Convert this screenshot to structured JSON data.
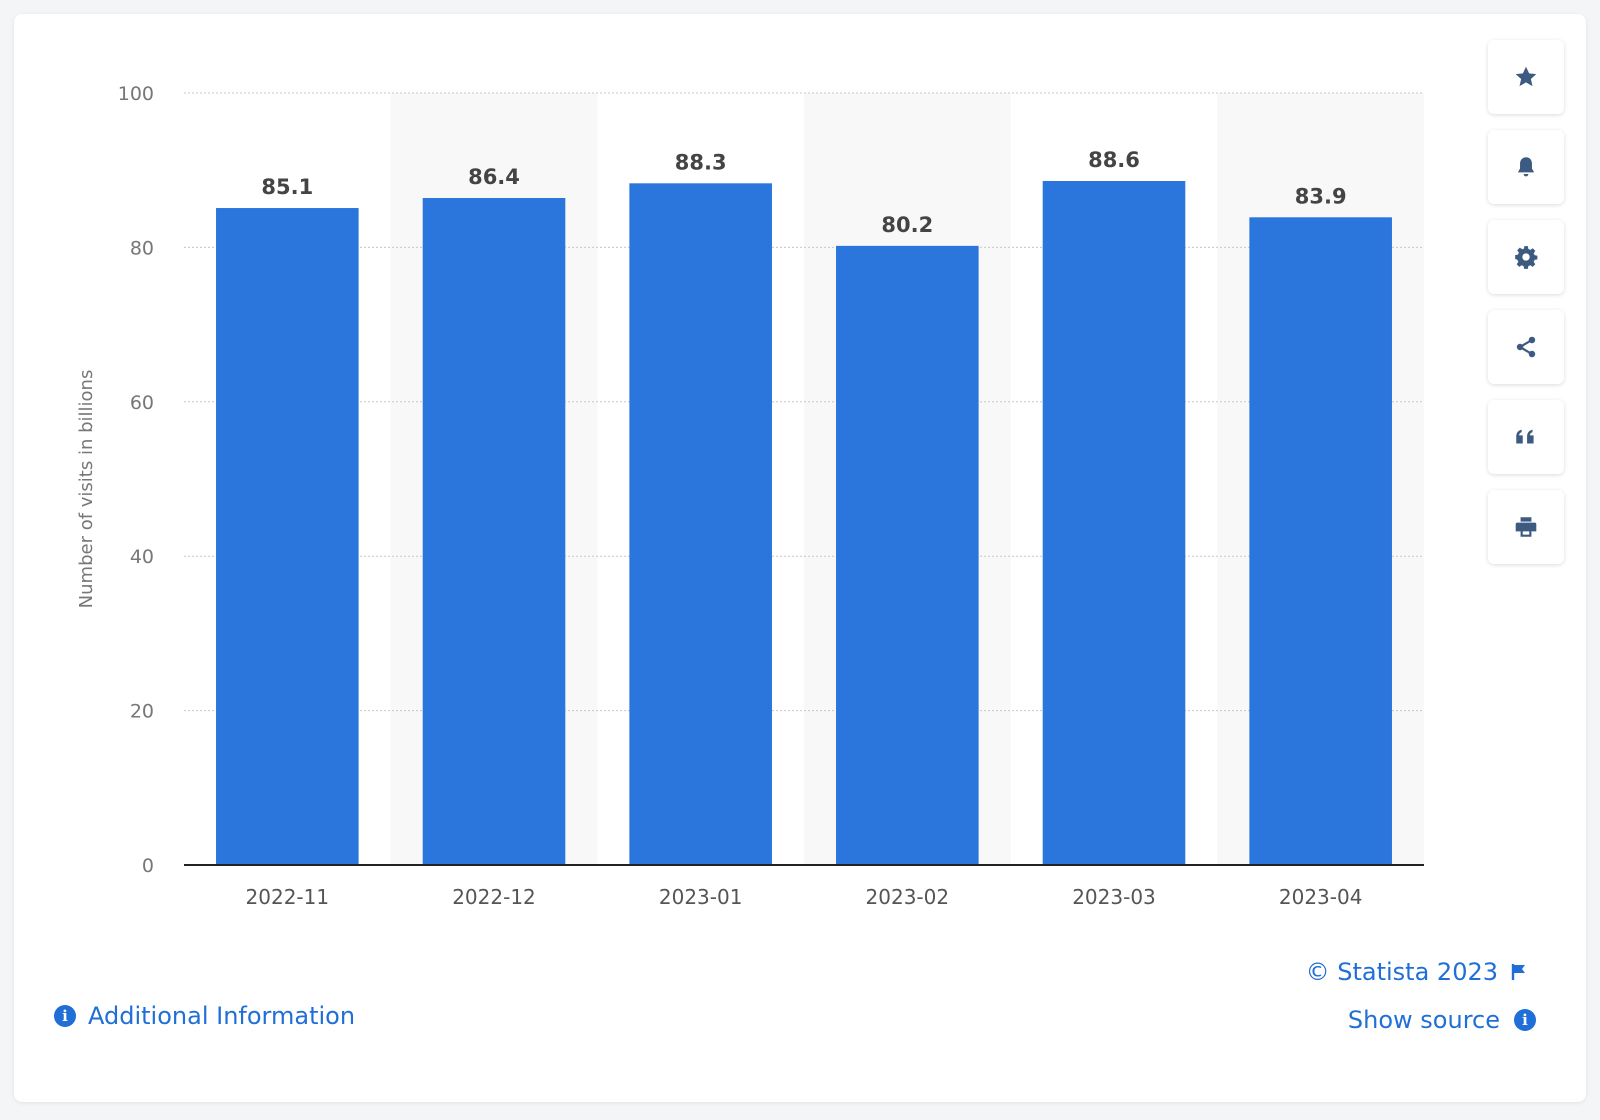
{
  "chart_data": {
    "type": "bar",
    "categories": [
      "2022-11",
      "2022-12",
      "2023-01",
      "2023-02",
      "2023-03",
      "2023-04"
    ],
    "values": [
      85.1,
      86.4,
      88.3,
      80.2,
      88.6,
      83.9
    ],
    "data_labels": [
      "85.1",
      "86.4",
      "88.3",
      "80.2",
      "88.6",
      "83.9"
    ],
    "ylabel": "Number of visits in billions",
    "xlabel": "",
    "ylim": [
      0,
      100
    ],
    "yticks": [
      0,
      20,
      40,
      60,
      80,
      100
    ],
    "grid": true,
    "bar_color": "#2a76dd",
    "alternating_column_shading": true
  },
  "toolbar": {
    "icons": [
      "star-icon",
      "bell-icon",
      "gear-icon",
      "share-icon",
      "quote-icon",
      "print-icon"
    ]
  },
  "footer": {
    "copyright": "© Statista 2023",
    "show_source": "Show source",
    "additional_info": "Additional Information"
  },
  "colors": {
    "accent": "#1f6fd6",
    "icon": "#3d5a80"
  }
}
